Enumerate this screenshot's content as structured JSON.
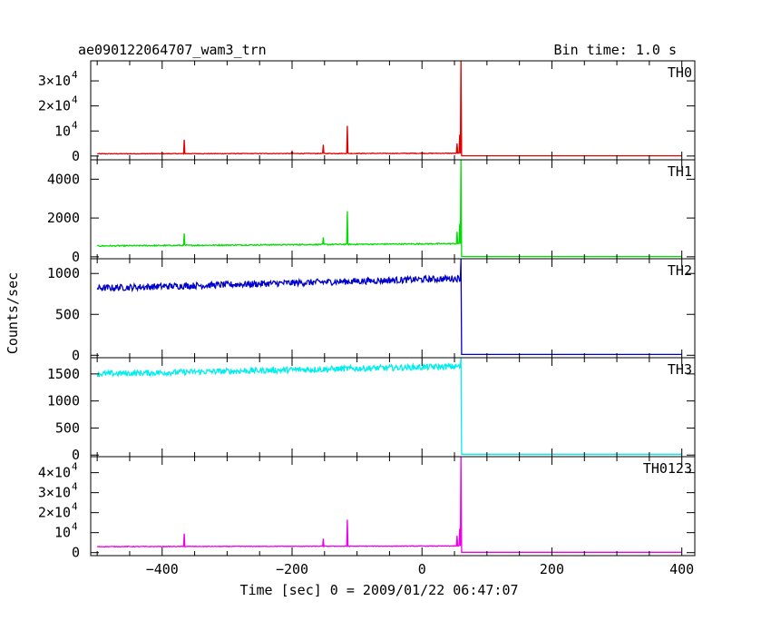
{
  "chart_data": {
    "type": "line",
    "title": "ae090122064707_wam3_trn",
    "bin_label": "Bin time: 1.0 s",
    "xlabel": "Time [sec] 0 = 2009/01/22 06:47:07",
    "ylabel": "Counts/sec",
    "xlim": [
      -510,
      420
    ],
    "x_ticks": [
      -400,
      -200,
      0,
      200,
      400
    ],
    "x_tick_labels": [
      "−400",
      "−200",
      "0",
      "200",
      "400"
    ],
    "grid": false,
    "panels": [
      {
        "name": "TH0",
        "color": "#e00000",
        "ylim": [
          -1500,
          38000
        ],
        "y_ticks": [
          0,
          10000,
          20000,
          30000
        ],
        "y_tick_labels": [
          {
            "m": "0",
            "e": ""
          },
          {
            "m": "10",
            "e": "4"
          },
          {
            "m": "2×10",
            "e": "4"
          },
          {
            "m": "3×10",
            "e": "4"
          }
        ],
        "baseline_start": 900,
        "baseline_end": 1100,
        "noise": 120,
        "post": 80,
        "spikes": [
          [
            -366,
            6500
          ],
          [
            -200,
            1800
          ],
          [
            -152,
            4500
          ],
          [
            -115,
            12000
          ],
          [
            54,
            5000
          ],
          [
            58,
            8500
          ],
          [
            60,
            38000
          ]
        ]
      },
      {
        "name": "TH1",
        "color": "#00dd00",
        "ylim": [
          -100,
          5000
        ],
        "y_ticks": [
          0,
          2000,
          4000
        ],
        "y_tick_labels": [
          {
            "m": "0",
            "e": ""
          },
          {
            "m": "2000",
            "e": ""
          },
          {
            "m": "4000",
            "e": ""
          }
        ],
        "baseline_start": 560,
        "baseline_end": 680,
        "noise": 30,
        "post": 15,
        "spikes": [
          [
            -366,
            1200
          ],
          [
            -152,
            1000
          ],
          [
            -115,
            2350
          ],
          [
            54,
            1300
          ],
          [
            58,
            1700
          ],
          [
            60,
            5000
          ]
        ]
      },
      {
        "name": "TH2",
        "color": "#0000cc",
        "ylim": [
          -30,
          1180
        ],
        "y_ticks": [
          0,
          500,
          1000
        ],
        "y_tick_labels": [
          {
            "m": "0",
            "e": ""
          },
          {
            "m": "500",
            "e": ""
          },
          {
            "m": "1000",
            "e": ""
          }
        ],
        "baseline_start": 820,
        "baseline_end": 940,
        "noise": 40,
        "post": 10,
        "spikes": [
          [
            60,
            1180
          ]
        ]
      },
      {
        "name": "TH3",
        "color": "#00eeee",
        "ylim": [
          -30,
          1800
        ],
        "y_ticks": [
          0,
          500,
          1000,
          1500
        ],
        "y_tick_labels": [
          {
            "m": "0",
            "e": ""
          },
          {
            "m": "500",
            "e": ""
          },
          {
            "m": "1000",
            "e": ""
          },
          {
            "m": "1500",
            "e": ""
          }
        ],
        "baseline_start": 1500,
        "baseline_end": 1640,
        "noise": 55,
        "post": 15,
        "spikes": [
          [
            60,
            1800
          ]
        ]
      },
      {
        "name": "TH0123",
        "color": "#ee00ee",
        "ylim": [
          -1500,
          48000
        ],
        "y_ticks": [
          0,
          10000,
          20000,
          30000,
          40000
        ],
        "y_tick_labels": [
          {
            "m": "0",
            "e": ""
          },
          {
            "m": "10",
            "e": "4"
          },
          {
            "m": "2×10",
            "e": "4"
          },
          {
            "m": "3×10",
            "e": "4"
          },
          {
            "m": "4×10",
            "e": "4"
          }
        ],
        "baseline_start": 3000,
        "baseline_end": 3300,
        "noise": 150,
        "post": 200,
        "spikes": [
          [
            -366,
            9500
          ],
          [
            -152,
            7000
          ],
          [
            -115,
            16500
          ],
          [
            54,
            8500
          ],
          [
            58,
            12000
          ],
          [
            60,
            48000
          ]
        ]
      }
    ]
  }
}
